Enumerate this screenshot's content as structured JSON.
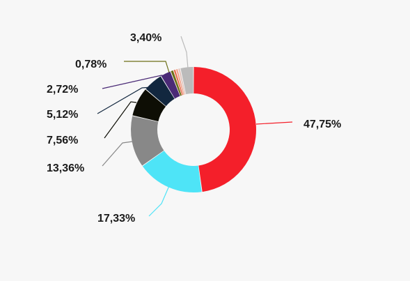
{
  "chart_data": {
    "type": "pie",
    "style": "donut",
    "title": "",
    "slices": [
      {
        "label": "47,75%",
        "value": 47.75,
        "color": "#f41f2a"
      },
      {
        "label": "17,33%",
        "value": 17.33,
        "color": "#4ee4f7"
      },
      {
        "label": "13,36%",
        "value": 13.36,
        "color": "#888888"
      },
      {
        "label": "7,56%",
        "value": 7.56,
        "color": "#0e0e05"
      },
      {
        "label": "5,12%",
        "value": 5.12,
        "color": "#12273f"
      },
      {
        "label": "2,72%",
        "value": 2.72,
        "color": "#4a2a76"
      },
      {
        "label": "0,78%",
        "value": 0.78,
        "color": "#6b6e16"
      },
      {
        "label": "",
        "value": 0.6,
        "color": "#e86a4a"
      },
      {
        "label": "",
        "value": 0.6,
        "color": "#f2a48c"
      },
      {
        "label": "",
        "value": 0.6,
        "color": "#e3c7c0"
      },
      {
        "label": "3,40%",
        "value": 3.4,
        "color": "#bbbbbb"
      }
    ]
  }
}
